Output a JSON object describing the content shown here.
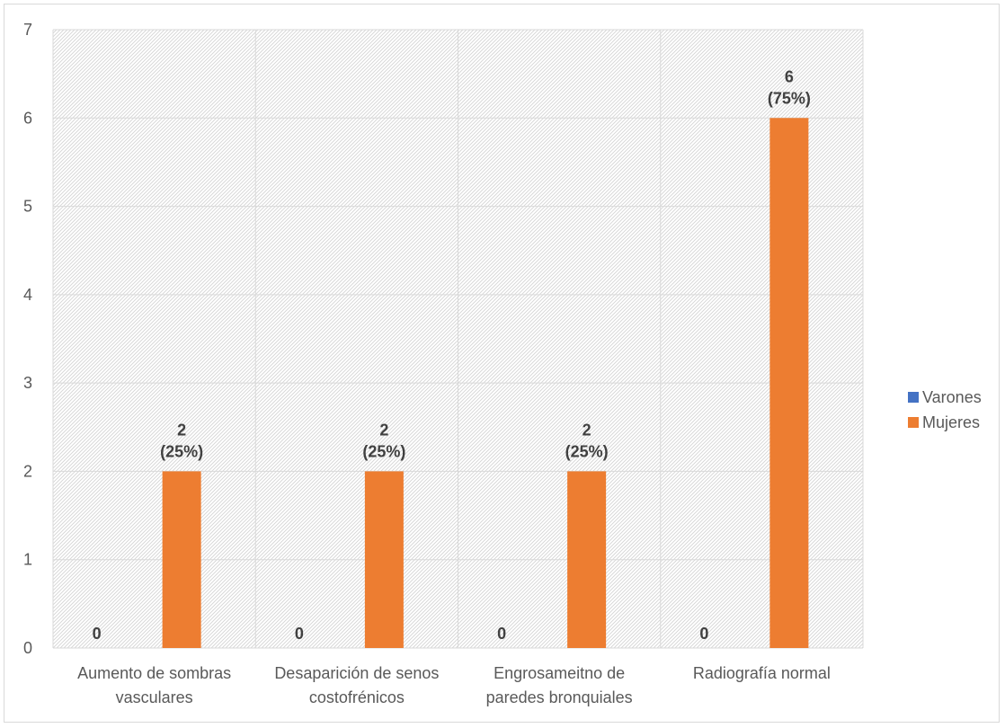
{
  "chart_data": {
    "type": "bar",
    "categories": [
      [
        "Aumento de sombras",
        "vasculares"
      ],
      [
        "Desaparición de senos",
        "costofrénicos"
      ],
      [
        "Engrosameitno de",
        "paredes bronquiales"
      ],
      [
        "Radiografía normal"
      ]
    ],
    "series": [
      {
        "name": "Varones",
        "color": "#4472c4",
        "values": [
          0,
          0,
          0,
          0
        ],
        "labels": [
          [
            "0"
          ],
          [
            "0"
          ],
          [
            "0"
          ],
          [
            "0"
          ]
        ]
      },
      {
        "name": "Mujeres",
        "color": "#ed7d31",
        "values": [
          2,
          2,
          2,
          6
        ],
        "labels": [
          [
            "2",
            "(25%)"
          ],
          [
            "2",
            "(25%)"
          ],
          [
            "2",
            "(25%)"
          ],
          [
            "6",
            "(75%)"
          ]
        ]
      }
    ],
    "ylim": [
      0,
      7
    ],
    "yticks": [
      "0",
      "1",
      "2",
      "3",
      "4",
      "5",
      "6",
      "7"
    ],
    "xlabel": "",
    "ylabel": "",
    "title": "",
    "grid": true,
    "legend_position": "right"
  }
}
